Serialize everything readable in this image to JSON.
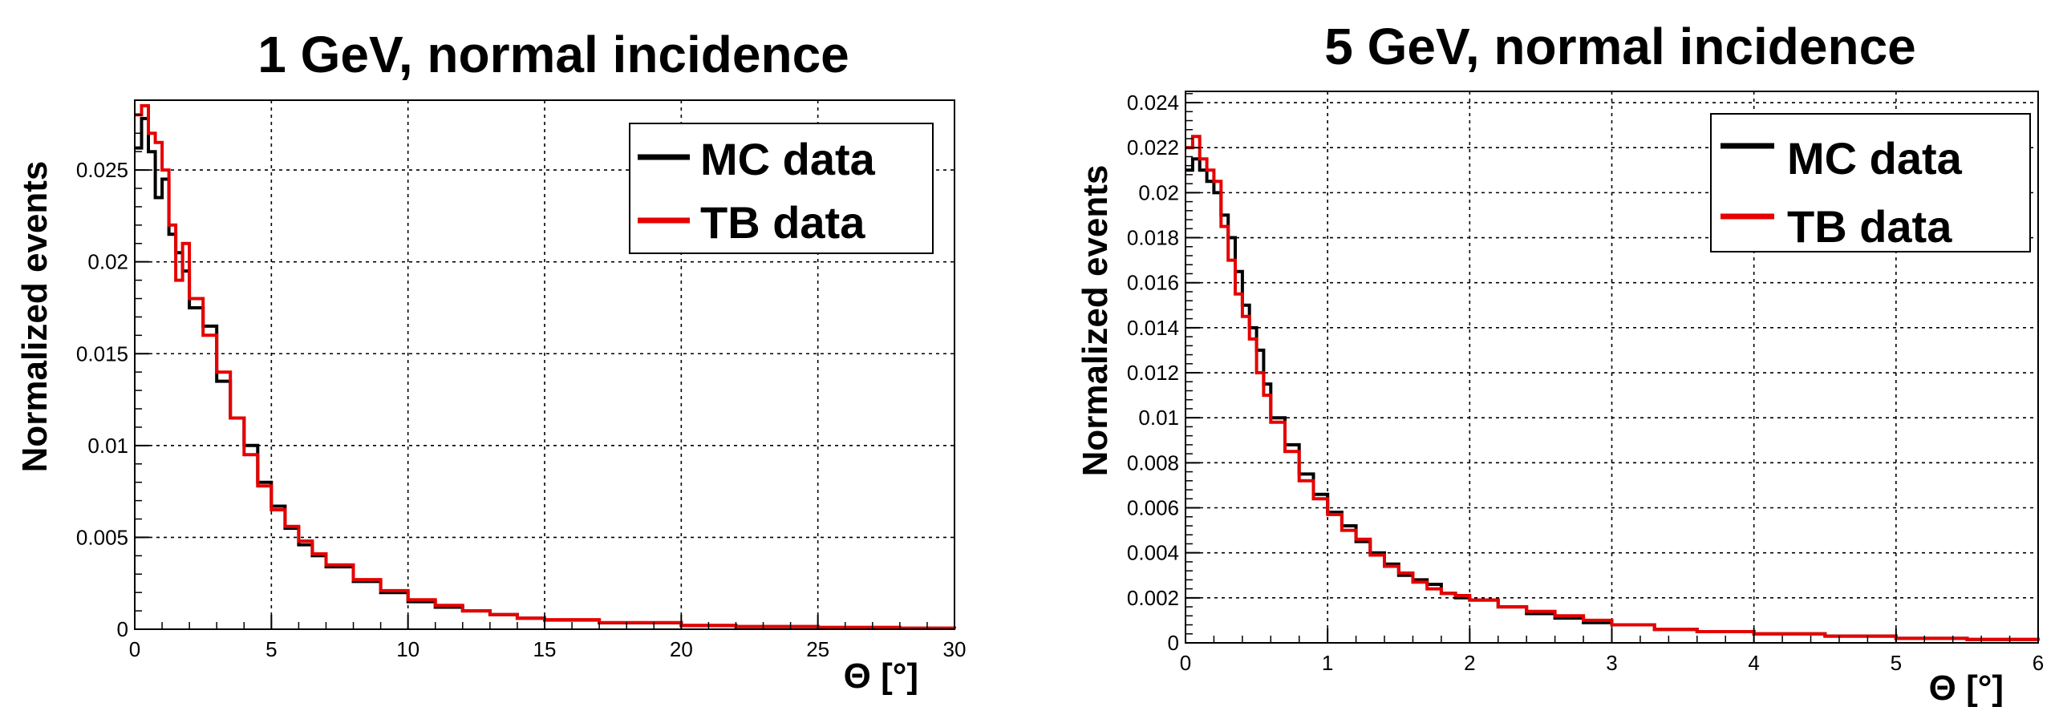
{
  "chart_data": [
    {
      "type": "line",
      "title": "1 GeV, normal incidence",
      "xlabel": "Θ [°]",
      "ylabel": "Normalized events",
      "xlim": [
        0,
        30
      ],
      "ylim": [
        0,
        0.0288
      ],
      "x_ticks": [
        0,
        5,
        10,
        15,
        20,
        25,
        30
      ],
      "x_tick_labels": [
        "0",
        "5",
        "10",
        "15",
        "20",
        "25",
        "30"
      ],
      "y_ticks": [
        0,
        0.005,
        0.01,
        0.015,
        0.02,
        0.025
      ],
      "y_tick_labels": [
        "0",
        "0.005",
        "0.01",
        "0.015",
        "0.02",
        "0.025"
      ],
      "grid": true,
      "legend_position": "top-right",
      "series": [
        {
          "name": "MC data",
          "color": "#000000",
          "x": [
            0,
            0.25,
            0.5,
            0.75,
            1,
            1.25,
            1.5,
            1.75,
            2,
            2.5,
            3,
            3.5,
            4,
            4.5,
            5,
            5.5,
            6,
            6.5,
            7,
            8,
            9,
            10,
            11,
            12,
            13,
            14,
            15,
            17,
            20,
            22,
            25,
            28,
            30
          ],
          "values": [
            0.0262,
            0.0278,
            0.026,
            0.0235,
            0.0245,
            0.0215,
            0.0205,
            0.0195,
            0.0175,
            0.0165,
            0.0135,
            0.0115,
            0.01,
            0.008,
            0.0067,
            0.0055,
            0.0046,
            0.004,
            0.0034,
            0.0026,
            0.002,
            0.0015,
            0.0012,
            0.001,
            0.0008,
            0.0006,
            0.0005,
            0.00035,
            0.0002,
            0.00014,
            9e-05,
            5e-05,
            3e-05
          ]
        },
        {
          "name": "TB data",
          "color": "#e60000",
          "x": [
            0,
            0.25,
            0.5,
            0.75,
            1,
            1.25,
            1.5,
            1.75,
            2,
            2.5,
            3,
            3.5,
            4,
            4.5,
            5,
            5.5,
            6,
            6.5,
            7,
            8,
            9,
            10,
            11,
            12,
            13,
            14,
            15,
            17,
            20,
            22,
            25,
            28,
            30
          ],
          "values": [
            0.028,
            0.0285,
            0.027,
            0.0265,
            0.025,
            0.022,
            0.019,
            0.021,
            0.018,
            0.016,
            0.014,
            0.0115,
            0.0095,
            0.0078,
            0.0065,
            0.0056,
            0.0048,
            0.0041,
            0.0035,
            0.0027,
            0.0021,
            0.0016,
            0.0013,
            0.001,
            0.0008,
            0.0006,
            0.00052,
            0.00036,
            0.00021,
            0.00015,
            0.0001,
            6e-05,
            3e-05
          ]
        }
      ]
    },
    {
      "type": "line",
      "title": "5 GeV, normal incidence",
      "xlabel": "Θ [°]",
      "ylabel": "Normalized events",
      "xlim": [
        0,
        6
      ],
      "ylim": [
        0,
        0.0245
      ],
      "x_ticks": [
        0,
        1,
        2,
        3,
        4,
        5,
        6
      ],
      "x_tick_labels": [
        "0",
        "1",
        "2",
        "3",
        "4",
        "5",
        "6"
      ],
      "y_ticks": [
        0,
        0.002,
        0.004,
        0.006,
        0.008,
        0.01,
        0.012,
        0.014,
        0.016,
        0.018,
        0.02,
        0.022,
        0.024
      ],
      "y_tick_labels": [
        "0",
        "0.002",
        "0.004",
        "0.006",
        "0.008",
        "0.01",
        "0.012",
        "0.014",
        "0.016",
        "0.018",
        "0.02",
        "0.022",
        "0.024"
      ],
      "grid": true,
      "legend_position": "top-right",
      "series": [
        {
          "name": "MC data",
          "color": "#000000",
          "x": [
            0,
            0.05,
            0.1,
            0.15,
            0.2,
            0.25,
            0.3,
            0.35,
            0.4,
            0.45,
            0.5,
            0.55,
            0.6,
            0.7,
            0.8,
            0.9,
            1.0,
            1.1,
            1.2,
            1.3,
            1.4,
            1.5,
            1.6,
            1.7,
            1.8,
            1.9,
            2.0,
            2.2,
            2.4,
            2.6,
            2.8,
            3.0,
            3.3,
            3.6,
            4.0,
            4.5,
            5.0,
            5.5,
            6.0
          ],
          "values": [
            0.021,
            0.0215,
            0.021,
            0.0205,
            0.02,
            0.019,
            0.018,
            0.0165,
            0.015,
            0.014,
            0.013,
            0.0115,
            0.01,
            0.0088,
            0.0075,
            0.0066,
            0.0058,
            0.0052,
            0.0045,
            0.004,
            0.0035,
            0.003,
            0.0028,
            0.0026,
            0.0022,
            0.002,
            0.0019,
            0.0016,
            0.0013,
            0.0011,
            0.0009,
            0.0008,
            0.0006,
            0.0005,
            0.0004,
            0.0003,
            0.0002,
            0.00015,
            0.0001
          ]
        },
        {
          "name": "TB data",
          "color": "#e60000",
          "x": [
            0,
            0.05,
            0.1,
            0.15,
            0.2,
            0.25,
            0.3,
            0.35,
            0.4,
            0.45,
            0.5,
            0.55,
            0.6,
            0.7,
            0.8,
            0.9,
            1.0,
            1.1,
            1.2,
            1.3,
            1.4,
            1.5,
            1.6,
            1.7,
            1.8,
            1.9,
            2.0,
            2.2,
            2.4,
            2.6,
            2.8,
            3.0,
            3.3,
            3.6,
            4.0,
            4.5,
            5.0,
            5.5,
            6.0
          ],
          "values": [
            0.022,
            0.0225,
            0.0215,
            0.021,
            0.0205,
            0.0185,
            0.017,
            0.0155,
            0.0145,
            0.0135,
            0.012,
            0.011,
            0.0098,
            0.0085,
            0.0072,
            0.0064,
            0.0057,
            0.005,
            0.0046,
            0.0039,
            0.0034,
            0.0031,
            0.0027,
            0.0024,
            0.0022,
            0.0021,
            0.0019,
            0.0016,
            0.0014,
            0.0012,
            0.001,
            0.0008,
            0.0006,
            0.0005,
            0.0004,
            0.0003,
            0.0002,
            0.00015,
            0.0001
          ]
        }
      ]
    }
  ]
}
